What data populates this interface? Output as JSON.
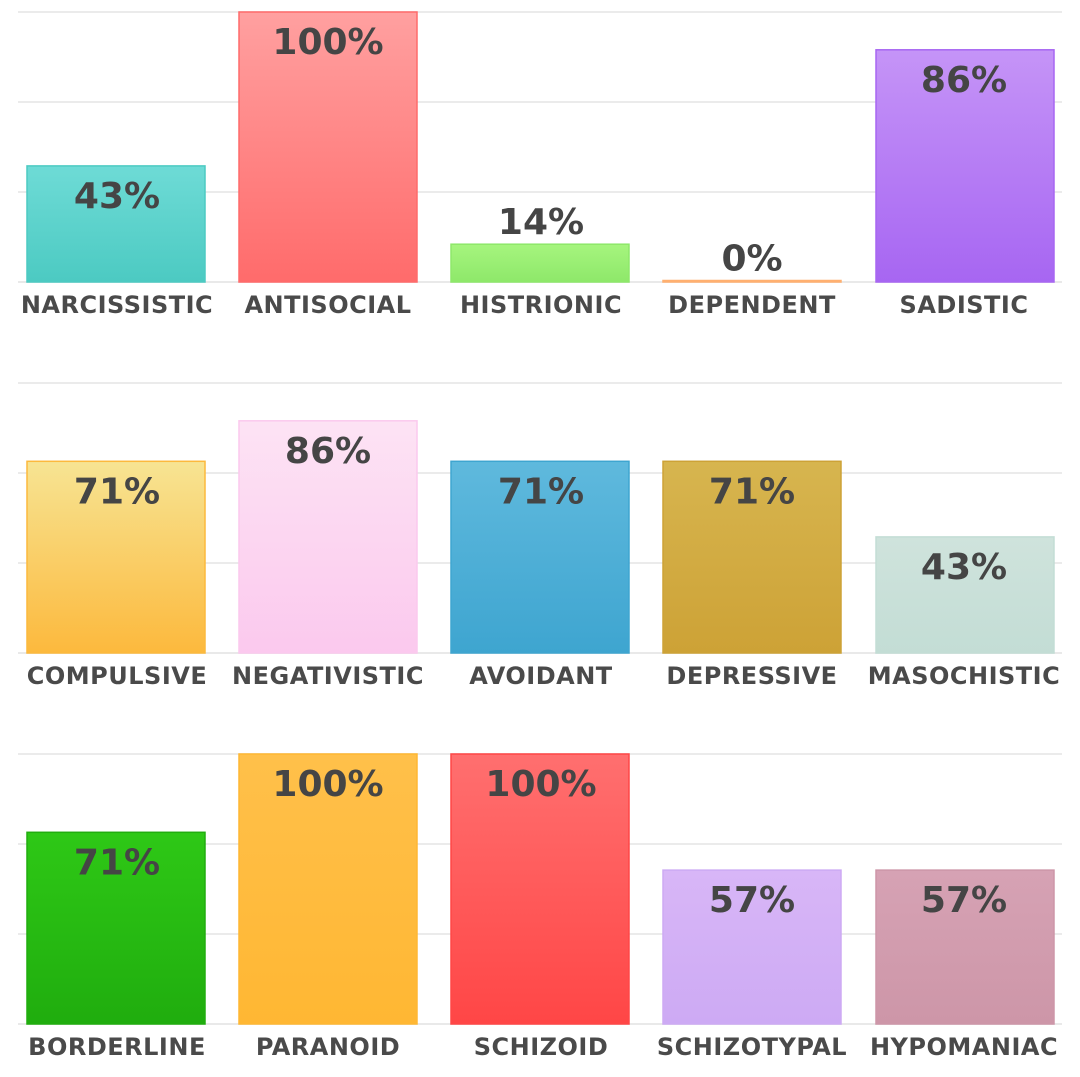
{
  "chart_data": [
    {
      "type": "bar",
      "ylim": [
        0,
        100
      ],
      "grid": true,
      "categories": [
        "NARCISSISTIC",
        "ANTISOCIAL",
        "HISTRIONIC",
        "DEPENDENT",
        "SADISTIC"
      ],
      "values": [
        43,
        100,
        14,
        0,
        86
      ],
      "value_labels": [
        "43%",
        "100%",
        "14%",
        "0%",
        "86%"
      ],
      "colors": [
        [
          "#6edbd6",
          "#4ccac2"
        ],
        [
          "#ffa0a0",
          "#ff6b6b"
        ],
        [
          "#a6f57e",
          "#8ee86a"
        ],
        [
          "#ffd1a8",
          "#ffb070"
        ],
        [
          "#c594f7",
          "#a766f2"
        ]
      ]
    },
    {
      "type": "bar",
      "ylim": [
        0,
        100
      ],
      "grid": true,
      "categories": [
        "COMPULSIVE",
        "NEGATIVISTIC",
        "AVOIDANT",
        "DEPRESSIVE",
        "MASOCHISTIC"
      ],
      "values": [
        71,
        86,
        71,
        71,
        43
      ],
      "value_labels": [
        "71%",
        "86%",
        "71%",
        "71%",
        "43%"
      ],
      "colors": [
        [
          "#f7e493",
          "#fcb93d"
        ],
        [
          "#fde3f4",
          "#fbc9ee"
        ],
        [
          "#5fb9dd",
          "#3ea5d0"
        ],
        [
          "#d7b54f",
          "#cda236"
        ],
        [
          "#cfe3dc",
          "#c3ddd5"
        ]
      ]
    },
    {
      "type": "bar",
      "ylim": [
        0,
        100
      ],
      "grid": true,
      "categories": [
        "BORDERLINE",
        "PARANOID",
        "SCHIZOID",
        "SCHIZOTYPAL",
        "HYPOMANIAC"
      ],
      "values": [
        71,
        100,
        100,
        57,
        57
      ],
      "value_labels": [
        "71%",
        "100%",
        "100%",
        "57%",
        "57%"
      ],
      "colors": [
        [
          "#2ec816",
          "#20ad0e"
        ],
        [
          "#ffc04a",
          "#ffb733"
        ],
        [
          "#ff6f6f",
          "#ff4646"
        ],
        [
          "#d8b6f7",
          "#cdaaf4"
        ],
        [
          "#d6a2b4",
          "#cd96a8"
        ]
      ]
    }
  ]
}
